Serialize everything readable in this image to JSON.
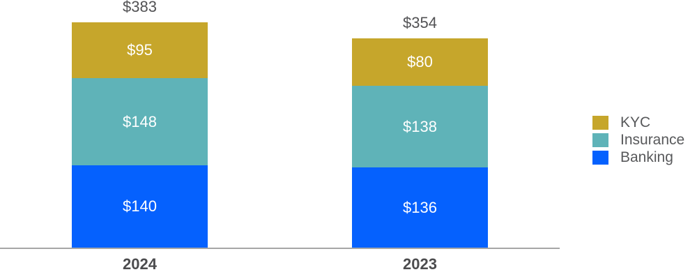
{
  "chart_data": {
    "type": "bar",
    "stacked": true,
    "title": "",
    "categories": [
      "2024",
      "2023"
    ],
    "series": [
      {
        "name": "KYC",
        "color": "#c6a62b",
        "values": [
          95,
          80
        ]
      },
      {
        "name": "Insurance",
        "color": "#5fb3b8",
        "values": [
          148,
          138
        ]
      },
      {
        "name": "Banking",
        "color": "#0561fe",
        "values": [
          140,
          136
        ]
      }
    ],
    "totals": [
      383,
      354
    ],
    "value_prefix": "$",
    "segment_labels": [
      [
        "$95",
        "$148",
        "$140"
      ],
      [
        "$80",
        "$138",
        "$136"
      ]
    ],
    "total_labels": [
      "$383",
      "$354"
    ],
    "legend_position": "right",
    "grid": false,
    "colors": {
      "axis_line": "#a6a6a6",
      "total_label_text": "#525254",
      "year_label_text": "#4c4c4e",
      "legend_text": "#58595b",
      "segment_value_text": "#ffffff",
      "background": "#ffffff"
    }
  }
}
